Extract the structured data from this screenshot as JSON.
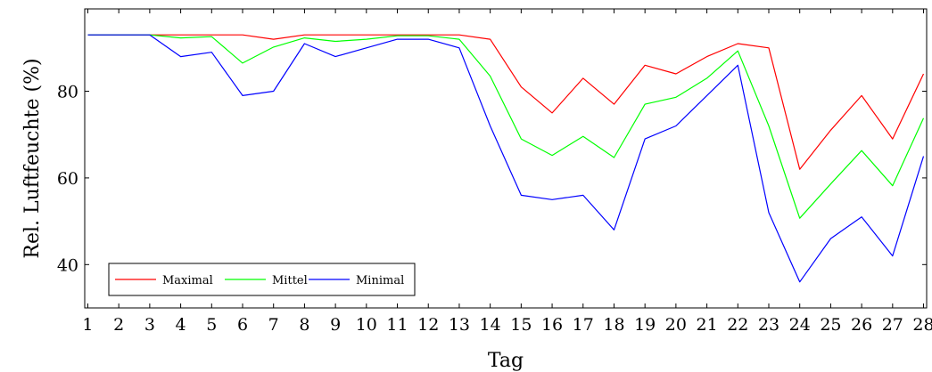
{
  "chart_data": {
    "type": "line",
    "title": "",
    "xlabel": "Tag",
    "ylabel": "Rel. Luftfeuchte (%)",
    "x": [
      1,
      2,
      3,
      4,
      5,
      6,
      7,
      8,
      9,
      10,
      11,
      12,
      13,
      14,
      15,
      16,
      17,
      18,
      19,
      20,
      21,
      22,
      23,
      24,
      25,
      26,
      27,
      28
    ],
    "xlim": [
      0.9,
      28.1
    ],
    "ylim": [
      30,
      99
    ],
    "yticks": [
      40,
      60,
      80
    ],
    "grid": false,
    "legend_position": "bottom-left",
    "series": [
      {
        "name": "Maximal",
        "color": "#ff0000",
        "values": [
          93,
          93,
          93,
          93,
          93,
          93,
          92,
          93,
          93,
          93,
          93,
          93,
          93,
          92,
          81,
          75,
          83,
          77,
          86,
          84,
          88,
          91,
          90,
          62,
          71,
          79,
          69,
          84
        ]
      },
      {
        "name": "Mittel",
        "color": "#00ff00",
        "values": [
          93,
          93,
          93,
          92.3,
          92.6,
          86.5,
          90.2,
          92.3,
          91.5,
          92,
          92.8,
          92.8,
          92,
          83.5,
          69,
          65.2,
          69.6,
          64.7,
          77,
          78.6,
          83,
          89.3,
          72,
          50.7,
          58.6,
          66.3,
          58.2,
          73.8
        ]
      },
      {
        "name": "Minimal",
        "color": "#0000ff",
        "values": [
          93,
          93,
          93,
          88,
          89,
          79,
          80,
          91,
          88,
          90,
          92,
          92,
          90,
          72,
          56,
          55,
          56,
          48,
          69,
          72,
          79,
          86,
          52,
          36,
          46,
          51,
          42,
          65
        ]
      }
    ]
  }
}
